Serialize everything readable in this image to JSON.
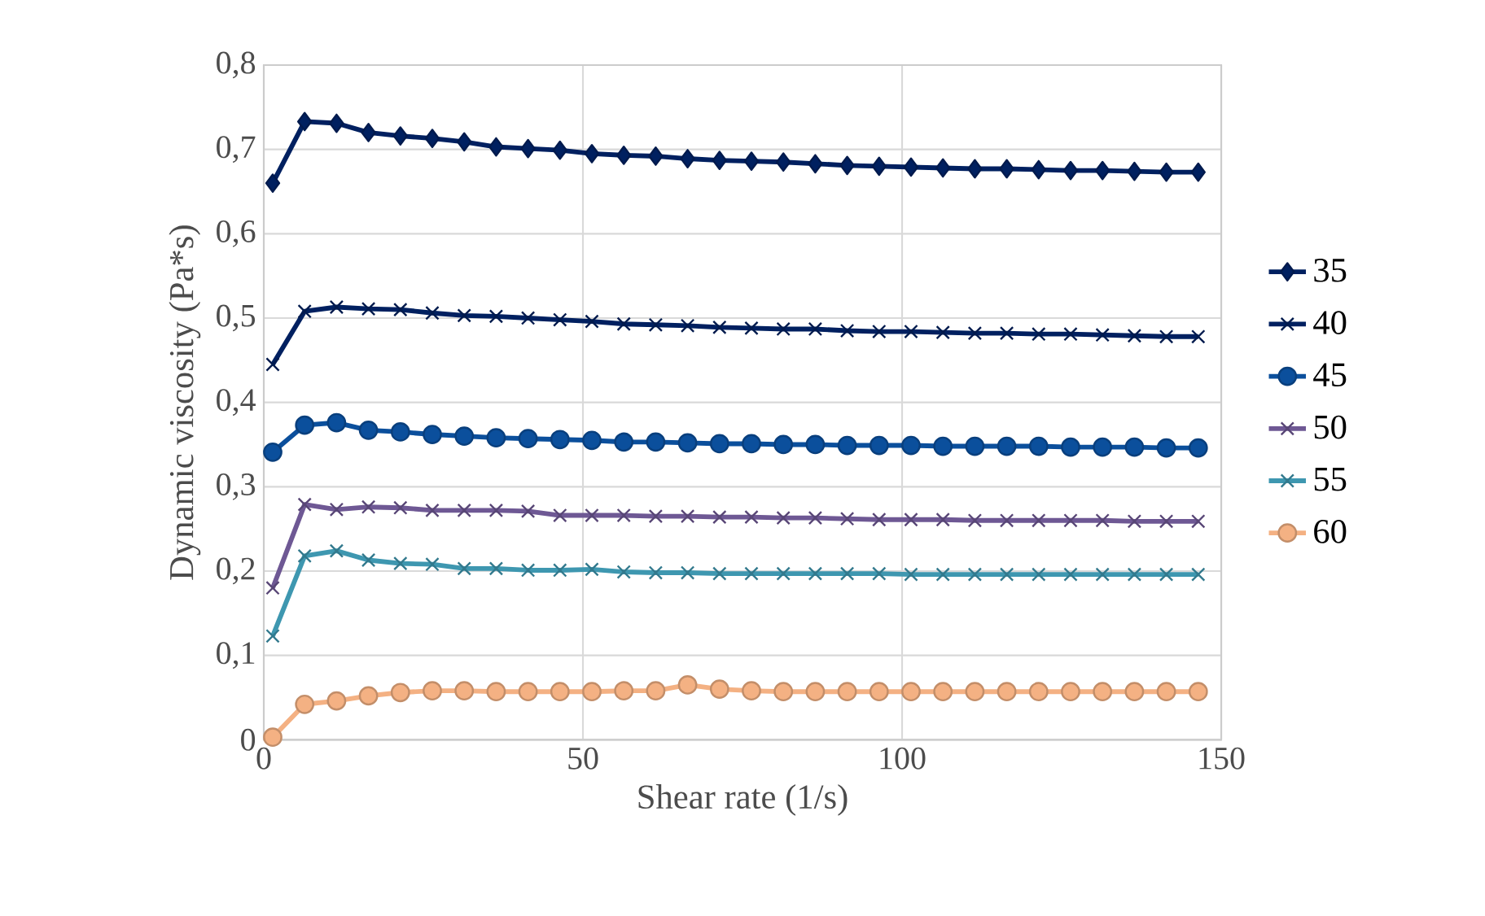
{
  "chart_data": {
    "type": "line",
    "xlabel": "Shear rate (1/s)",
    "ylabel": "Dynamic viscosity (Pa*s)",
    "x": [
      1.4,
      6.4,
      11.4,
      16.4,
      21.4,
      26.4,
      31.4,
      36.4,
      41.4,
      46.4,
      51.4,
      56.4,
      61.4,
      66.4,
      71.4,
      76.4,
      81.4,
      86.4,
      91.4,
      96.4,
      101.4,
      106.4,
      111.4,
      116.4,
      121.4,
      126.4,
      131.4,
      136.4,
      141.4,
      146.4
    ],
    "series": [
      {
        "name": "35",
        "color": "#002060",
        "marker": "diamond",
        "values": [
          0.66,
          0.733,
          0.731,
          0.72,
          0.716,
          0.713,
          0.709,
          0.703,
          0.701,
          0.699,
          0.695,
          0.693,
          0.692,
          0.689,
          0.687,
          0.686,
          0.685,
          0.683,
          0.681,
          0.68,
          0.679,
          0.678,
          0.677,
          0.677,
          0.676,
          0.675,
          0.675,
          0.674,
          0.673,
          0.673
        ]
      },
      {
        "name": "40",
        "color": "#002060",
        "marker": "cross",
        "values": [
          0.445,
          0.508,
          0.513,
          0.511,
          0.51,
          0.506,
          0.503,
          0.502,
          0.5,
          0.498,
          0.496,
          0.493,
          0.492,
          0.491,
          0.489,
          0.488,
          0.487,
          0.487,
          0.485,
          0.484,
          0.484,
          0.483,
          0.482,
          0.482,
          0.481,
          0.481,
          0.48,
          0.479,
          0.478,
          0.478
        ]
      },
      {
        "name": "45",
        "color": "#0b4f9c",
        "marker": "circle",
        "values": [
          0.341,
          0.373,
          0.376,
          0.367,
          0.365,
          0.362,
          0.36,
          0.358,
          0.357,
          0.356,
          0.355,
          0.353,
          0.353,
          0.352,
          0.351,
          0.351,
          0.35,
          0.35,
          0.349,
          0.349,
          0.349,
          0.348,
          0.348,
          0.348,
          0.348,
          0.347,
          0.347,
          0.347,
          0.346,
          0.346
        ]
      },
      {
        "name": "50",
        "color": "#6e5894",
        "marker": "cross",
        "values": [
          0.18,
          0.279,
          0.273,
          0.276,
          0.275,
          0.272,
          0.272,
          0.272,
          0.271,
          0.266,
          0.266,
          0.266,
          0.265,
          0.265,
          0.264,
          0.264,
          0.263,
          0.263,
          0.262,
          0.261,
          0.261,
          0.261,
          0.26,
          0.26,
          0.26,
          0.26,
          0.26,
          0.259,
          0.259,
          0.259
        ]
      },
      {
        "name": "55",
        "color": "#3e97b0",
        "marker": "cross",
        "values": [
          0.123,
          0.218,
          0.224,
          0.213,
          0.209,
          0.208,
          0.203,
          0.203,
          0.201,
          0.201,
          0.202,
          0.199,
          0.198,
          0.198,
          0.197,
          0.197,
          0.197,
          0.197,
          0.197,
          0.197,
          0.196,
          0.196,
          0.196,
          0.196,
          0.196,
          0.196,
          0.196,
          0.196,
          0.196,
          0.196
        ]
      },
      {
        "name": "60",
        "color": "#f4b183",
        "marker": "circle",
        "values": [
          0.003,
          0.042,
          0.046,
          0.052,
          0.056,
          0.058,
          0.058,
          0.057,
          0.057,
          0.057,
          0.057,
          0.058,
          0.058,
          0.065,
          0.06,
          0.058,
          0.057,
          0.057,
          0.057,
          0.057,
          0.057,
          0.057,
          0.057,
          0.057,
          0.057,
          0.057,
          0.057,
          0.057,
          0.057,
          0.057
        ]
      }
    ],
    "xlim": [
      0,
      150
    ],
    "xticks": [
      0,
      50,
      100,
      150
    ],
    "ylim": [
      0,
      0.8
    ],
    "yticks": [
      0,
      {
        "value": 0.1,
        "label": "0,1"
      },
      {
        "value": 0.2,
        "label": "0,2"
      },
      {
        "value": 0.3,
        "label": "0,3"
      },
      {
        "value": 0.4,
        "label": "0,4"
      },
      {
        "value": 0.5,
        "label": "0,5"
      },
      {
        "value": 0.6,
        "label": "0,6"
      },
      {
        "value": 0.7,
        "label": "0,7"
      },
      {
        "value": 0.8,
        "label": "0,8"
      }
    ],
    "grid": true,
    "legend": "right",
    "line_style": "solid"
  }
}
